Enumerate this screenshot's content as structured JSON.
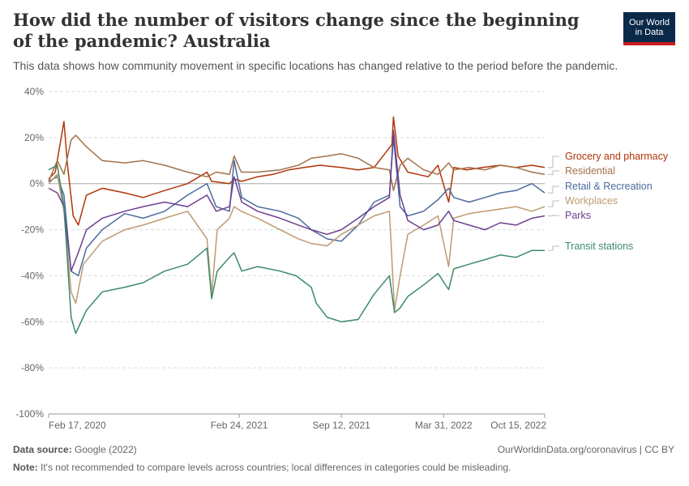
{
  "header": {
    "title": "How did the number of visitors change since the beginning of the pandemic? Australia",
    "subtitle": "This data shows how community movement in specific locations has changed relative to the period before the pandemic.",
    "logo_line1": "Our World",
    "logo_line2": "in Data"
  },
  "footer": {
    "source_label": "Data source:",
    "source_value": "Google (2022)",
    "note_label": "Note:",
    "note_value": "It's not recommended to compare levels across countries; local differences in categories could be misleading.",
    "credit": "OurWorldinData.org/coronavirus | CC BY"
  },
  "chart_data": {
    "type": "line",
    "ylabel": "",
    "xlabel": "",
    "ylim": [
      -100,
      40
    ],
    "yticks": [
      -100,
      -80,
      -60,
      -40,
      -20,
      0,
      20,
      40
    ],
    "ytick_labels": [
      "-100%",
      "-80%",
      "-60%",
      "-40%",
      "-20%",
      "0%",
      "20%",
      "40%"
    ],
    "x_range": [
      "2020-02-17",
      "2022-10-15"
    ],
    "xticks": [
      {
        "date": "2020-02-17",
        "label": "Feb 17, 2020"
      },
      {
        "date": "2021-02-24",
        "label": "Feb 24, 2021"
      },
      {
        "date": "2021-09-12",
        "label": "Sep 12, 2021"
      },
      {
        "date": "2022-03-31",
        "label": "Mar 31, 2022"
      },
      {
        "date": "2022-10-15",
        "label": "Oct 15, 2022"
      }
    ],
    "gridlines": "horizontal-dashed",
    "legend_position": "right-inline",
    "series": [
      {
        "name": "Grocery and pharmacy",
        "color": "#b13507",
        "last_value": 7,
        "points": [
          [
            "2020-02-17",
            2
          ],
          [
            "2020-03-01",
            5
          ],
          [
            "2020-03-18",
            27
          ],
          [
            "2020-03-25",
            8
          ],
          [
            "2020-04-05",
            -14
          ],
          [
            "2020-04-15",
            -18
          ],
          [
            "2020-05-01",
            -5
          ],
          [
            "2020-06-01",
            -2
          ],
          [
            "2020-07-15",
            -4
          ],
          [
            "2020-08-20",
            -6
          ],
          [
            "2020-10-01",
            -3
          ],
          [
            "2020-11-15",
            0
          ],
          [
            "2020-12-23",
            5
          ],
          [
            "2021-01-01",
            1
          ],
          [
            "2021-02-05",
            0
          ],
          [
            "2021-02-14",
            2
          ],
          [
            "2021-03-01",
            1
          ],
          [
            "2021-04-01",
            3
          ],
          [
            "2021-05-01",
            4
          ],
          [
            "2021-06-01",
            6
          ],
          [
            "2021-07-01",
            7
          ],
          [
            "2021-08-01",
            8
          ],
          [
            "2021-09-12",
            7
          ],
          [
            "2021-10-15",
            6
          ],
          [
            "2021-11-15",
            7
          ],
          [
            "2021-12-20",
            17
          ],
          [
            "2021-12-23",
            29
          ],
          [
            "2022-01-01",
            12
          ],
          [
            "2022-01-20",
            5
          ],
          [
            "2022-03-01",
            3
          ],
          [
            "2022-03-20",
            8
          ],
          [
            "2022-04-10",
            -8
          ],
          [
            "2022-04-20",
            7
          ],
          [
            "2022-05-15",
            6
          ],
          [
            "2022-06-15",
            7
          ],
          [
            "2022-07-20",
            8
          ],
          [
            "2022-08-20",
            7
          ],
          [
            "2022-09-20",
            8
          ],
          [
            "2022-10-15",
            7
          ]
        ]
      },
      {
        "name": "Residential",
        "color": "#a2724a",
        "last_value": 4,
        "points": [
          [
            "2020-02-17",
            1
          ],
          [
            "2020-03-05",
            10
          ],
          [
            "2020-03-18",
            4
          ],
          [
            "2020-04-01",
            19
          ],
          [
            "2020-04-10",
            21
          ],
          [
            "2020-05-01",
            16
          ],
          [
            "2020-06-01",
            10
          ],
          [
            "2020-07-15",
            9
          ],
          [
            "2020-08-20",
            10
          ],
          [
            "2020-10-01",
            8
          ],
          [
            "2020-11-15",
            5
          ],
          [
            "2020-12-23",
            3
          ],
          [
            "2021-01-10",
            5
          ],
          [
            "2021-02-05",
            4
          ],
          [
            "2021-02-14",
            12
          ],
          [
            "2021-02-28",
            5
          ],
          [
            "2021-04-01",
            5
          ],
          [
            "2021-05-15",
            6
          ],
          [
            "2021-06-20",
            8
          ],
          [
            "2021-07-15",
            11
          ],
          [
            "2021-08-15",
            12
          ],
          [
            "2021-09-12",
            13
          ],
          [
            "2021-10-15",
            11
          ],
          [
            "2021-11-15",
            7
          ],
          [
            "2021-12-15",
            6
          ],
          [
            "2021-12-23",
            -3
          ],
          [
            "2022-01-05",
            8
          ],
          [
            "2022-01-20",
            11
          ],
          [
            "2022-02-20",
            6
          ],
          [
            "2022-03-20",
            4
          ],
          [
            "2022-04-10",
            9
          ],
          [
            "2022-04-20",
            6
          ],
          [
            "2022-05-20",
            7
          ],
          [
            "2022-06-20",
            6
          ],
          [
            "2022-07-20",
            8
          ],
          [
            "2022-08-20",
            7
          ],
          [
            "2022-09-20",
            5
          ],
          [
            "2022-10-15",
            4
          ]
        ]
      },
      {
        "name": "Retail & Recreation",
        "color": "#4c6a9c",
        "last_value": -4,
        "points": [
          [
            "2020-02-17",
            1
          ],
          [
            "2020-03-05",
            3
          ],
          [
            "2020-03-18",
            -5
          ],
          [
            "2020-04-01",
            -38
          ],
          [
            "2020-04-15",
            -40
          ],
          [
            "2020-05-01",
            -28
          ],
          [
            "2020-06-01",
            -20
          ],
          [
            "2020-07-15",
            -13
          ],
          [
            "2020-08-20",
            -15
          ],
          [
            "2020-10-01",
            -12
          ],
          [
            "2020-11-15",
            -5
          ],
          [
            "2020-12-23",
            0
          ],
          [
            "2021-01-10",
            -10
          ],
          [
            "2021-02-05",
            -12
          ],
          [
            "2021-02-14",
            10
          ],
          [
            "2021-03-01",
            -6
          ],
          [
            "2021-04-01",
            -10
          ],
          [
            "2021-05-15",
            -12
          ],
          [
            "2021-06-20",
            -15
          ],
          [
            "2021-07-15",
            -20
          ],
          [
            "2021-08-15",
            -24
          ],
          [
            "2021-09-12",
            -25
          ],
          [
            "2021-10-15",
            -18
          ],
          [
            "2021-11-15",
            -8
          ],
          [
            "2021-12-15",
            -5
          ],
          [
            "2021-12-23",
            20
          ],
          [
            "2022-01-05",
            -10
          ],
          [
            "2022-01-20",
            -14
          ],
          [
            "2022-02-20",
            -12
          ],
          [
            "2022-03-20",
            -7
          ],
          [
            "2022-04-10",
            -2
          ],
          [
            "2022-04-20",
            -6
          ],
          [
            "2022-05-20",
            -8
          ],
          [
            "2022-06-20",
            -6
          ],
          [
            "2022-07-20",
            -4
          ],
          [
            "2022-08-20",
            -3
          ],
          [
            "2022-09-20",
            0
          ],
          [
            "2022-10-15",
            -4
          ]
        ]
      },
      {
        "name": "Workplaces",
        "color": "#be9a72",
        "last_value": -10,
        "points": [
          [
            "2020-02-17",
            0
          ],
          [
            "2020-03-05",
            4
          ],
          [
            "2020-03-18",
            -12
          ],
          [
            "2020-04-01",
            -47
          ],
          [
            "2020-04-10",
            -52
          ],
          [
            "2020-04-25",
            -35
          ],
          [
            "2020-06-01",
            -25
          ],
          [
            "2020-07-15",
            -20
          ],
          [
            "2020-08-20",
            -18
          ],
          [
            "2020-10-01",
            -15
          ],
          [
            "2020-11-15",
            -12
          ],
          [
            "2020-12-23",
            -24
          ],
          [
            "2021-01-01",
            -48
          ],
          [
            "2021-01-12",
            -20
          ],
          [
            "2021-02-05",
            -15
          ],
          [
            "2021-02-14",
            -10
          ],
          [
            "2021-02-28",
            -12
          ],
          [
            "2021-04-01",
            -15
          ],
          [
            "2021-05-15",
            -20
          ],
          [
            "2021-06-20",
            -24
          ],
          [
            "2021-07-15",
            -26
          ],
          [
            "2021-08-15",
            -27
          ],
          [
            "2021-09-12",
            -22
          ],
          [
            "2021-10-15",
            -18
          ],
          [
            "2021-11-15",
            -14
          ],
          [
            "2021-12-15",
            -12
          ],
          [
            "2021-12-25",
            -55
          ],
          [
            "2022-01-05",
            -40
          ],
          [
            "2022-01-20",
            -22
          ],
          [
            "2022-02-20",
            -18
          ],
          [
            "2022-03-20",
            -14
          ],
          [
            "2022-04-10",
            -36
          ],
          [
            "2022-04-20",
            -15
          ],
          [
            "2022-05-20",
            -13
          ],
          [
            "2022-06-20",
            -12
          ],
          [
            "2022-07-20",
            -11
          ],
          [
            "2022-08-20",
            -10
          ],
          [
            "2022-09-20",
            -12
          ],
          [
            "2022-10-15",
            -10
          ]
        ]
      },
      {
        "name": "Parks",
        "color": "#6d3e91",
        "last_value": -14,
        "points": [
          [
            "2020-02-17",
            -2
          ],
          [
            "2020-03-05",
            -4
          ],
          [
            "2020-03-18",
            -10
          ],
          [
            "2020-04-01",
            -38
          ],
          [
            "2020-04-15",
            -30
          ],
          [
            "2020-05-01",
            -20
          ],
          [
            "2020-06-01",
            -15
          ],
          [
            "2020-07-15",
            -12
          ],
          [
            "2020-08-20",
            -10
          ],
          [
            "2020-10-01",
            -8
          ],
          [
            "2020-11-15",
            -10
          ],
          [
            "2020-12-23",
            -5
          ],
          [
            "2021-01-10",
            -12
          ],
          [
            "2021-02-05",
            -10
          ],
          [
            "2021-02-14",
            3
          ],
          [
            "2021-03-01",
            -8
          ],
          [
            "2021-04-01",
            -12
          ],
          [
            "2021-05-15",
            -15
          ],
          [
            "2021-06-20",
            -18
          ],
          [
            "2021-07-15",
            -20
          ],
          [
            "2021-08-15",
            -22
          ],
          [
            "2021-09-12",
            -20
          ],
          [
            "2021-10-15",
            -15
          ],
          [
            "2021-11-15",
            -10
          ],
          [
            "2021-12-15",
            -6
          ],
          [
            "2021-12-23",
            23
          ],
          [
            "2022-01-05",
            -5
          ],
          [
            "2022-01-20",
            -16
          ],
          [
            "2022-02-20",
            -20
          ],
          [
            "2022-03-20",
            -18
          ],
          [
            "2022-04-10",
            -12
          ],
          [
            "2022-04-20",
            -16
          ],
          [
            "2022-05-20",
            -18
          ],
          [
            "2022-06-20",
            -20
          ],
          [
            "2022-07-20",
            -17
          ],
          [
            "2022-08-20",
            -18
          ],
          [
            "2022-09-20",
            -15
          ],
          [
            "2022-10-15",
            -14
          ]
        ]
      },
      {
        "name": "Transit stations",
        "color": "#3c8a6c",
        "last_value": -29,
        "points": [
          [
            "2020-02-17",
            6
          ],
          [
            "2020-03-05",
            8
          ],
          [
            "2020-03-18",
            -10
          ],
          [
            "2020-04-01",
            -58
          ],
          [
            "2020-04-10",
            -65
          ],
          [
            "2020-05-01",
            -55
          ],
          [
            "2020-06-01",
            -47
          ],
          [
            "2020-07-15",
            -45
          ],
          [
            "2020-08-20",
            -43
          ],
          [
            "2020-10-01",
            -38
          ],
          [
            "2020-11-15",
            -35
          ],
          [
            "2020-12-23",
            -28
          ],
          [
            "2021-01-01",
            -50
          ],
          [
            "2021-01-12",
            -38
          ],
          [
            "2021-02-05",
            -32
          ],
          [
            "2021-02-14",
            -30
          ],
          [
            "2021-03-01",
            -38
          ],
          [
            "2021-04-01",
            -36
          ],
          [
            "2021-05-15",
            -38
          ],
          [
            "2021-06-15",
            -40
          ],
          [
            "2021-07-15",
            -45
          ],
          [
            "2021-07-25",
            -52
          ],
          [
            "2021-08-15",
            -58
          ],
          [
            "2021-09-12",
            -60
          ],
          [
            "2021-10-15",
            -59
          ],
          [
            "2021-11-15",
            -48
          ],
          [
            "2021-12-15",
            -40
          ],
          [
            "2021-12-25",
            -56
          ],
          [
            "2022-01-05",
            -54
          ],
          [
            "2022-01-20",
            -49
          ],
          [
            "2022-02-20",
            -44
          ],
          [
            "2022-03-20",
            -39
          ],
          [
            "2022-04-10",
            -46
          ],
          [
            "2022-04-20",
            -37
          ],
          [
            "2022-05-20",
            -35
          ],
          [
            "2022-06-20",
            -33
          ],
          [
            "2022-07-20",
            -31
          ],
          [
            "2022-08-20",
            -32
          ],
          [
            "2022-09-20",
            -29
          ],
          [
            "2022-10-15",
            -29
          ]
        ]
      }
    ]
  }
}
